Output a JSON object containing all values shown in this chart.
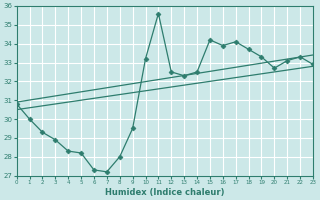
{
  "xlabel": "Humidex (Indice chaleur)",
  "bg_color": "#cce8e8",
  "grid_color": "#ffffff",
  "line_color": "#2e7d6e",
  "xlim": [
    0,
    23
  ],
  "ylim": [
    27,
    36
  ],
  "xticks": [
    0,
    1,
    2,
    3,
    4,
    5,
    6,
    7,
    8,
    9,
    10,
    11,
    12,
    13,
    14,
    15,
    16,
    17,
    18,
    19,
    20,
    21,
    22,
    23
  ],
  "yticks": [
    27,
    28,
    29,
    30,
    31,
    32,
    33,
    34,
    35,
    36
  ],
  "data_series": {
    "x": [
      0,
      1,
      2,
      3,
      4,
      5,
      6,
      7,
      8,
      9,
      10,
      11,
      12,
      13,
      14,
      15,
      16,
      17,
      18,
      19,
      20,
      21,
      22,
      23
    ],
    "y": [
      30.8,
      30.0,
      29.3,
      28.9,
      28.3,
      28.2,
      27.3,
      27.2,
      28.0,
      29.5,
      33.2,
      35.6,
      32.5,
      32.3,
      32.5,
      34.2,
      33.9,
      34.1,
      33.7,
      33.3,
      32.7,
      33.1,
      33.3,
      32.9
    ]
  },
  "trend_upper": {
    "x": [
      0,
      23
    ],
    "y": [
      30.9,
      33.4
    ]
  },
  "trend_lower": {
    "x": [
      0,
      23
    ],
    "y": [
      30.5,
      32.8
    ]
  }
}
